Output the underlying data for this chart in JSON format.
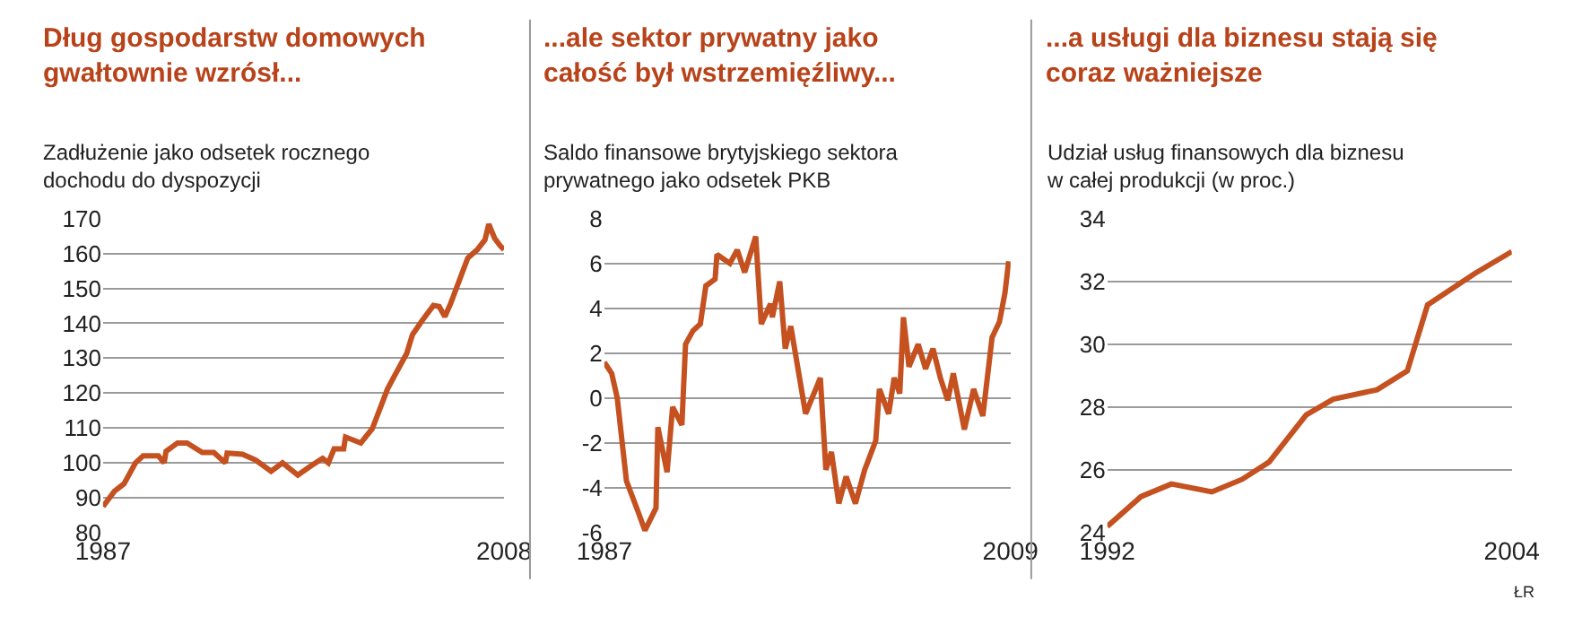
{
  "chart_data": [
    {
      "type": "line",
      "title": "Dług gospodarstw domowych gwałtownie wzrósł...",
      "subtitle": "Zadłużenie jako odsetek rocznego dochodu do dyspozycji",
      "x": [
        1987.0,
        1987.6,
        1988.1,
        1988.7,
        1989.1,
        1989.9,
        1990.2,
        1990.3,
        1990.9,
        1991.4,
        1992.2,
        1992.8,
        1993.4,
        1993.5,
        1994.3,
        1995.0,
        1995.8,
        1996.4,
        1997.2,
        1997.9,
        1998.5,
        1998.8,
        1999.1,
        1999.6,
        1999.7,
        2000.5,
        2001.1,
        2001.9,
        2002.3,
        2002.9,
        2003.2,
        2003.7,
        2004.3,
        2004.6,
        2004.9,
        2005.2,
        2006.1,
        2006.6,
        2007.0,
        2007.2,
        2007.5,
        2007.8,
        2008.0
      ],
      "series": [
        {
          "color": "#c4511f",
          "values": [
            87.5,
            91.9,
            94,
            100,
            102,
            102,
            100,
            103.3,
            105.7,
            105.7,
            103,
            103,
            100,
            102.8,
            102.5,
            100.8,
            97.6,
            100,
            96.5,
            99.2,
            101.3,
            100,
            104,
            104,
            107.4,
            105.7,
            109.8,
            121.2,
            125.3,
            131.3,
            136.7,
            140.7,
            145.1,
            144.8,
            141.9,
            145.6,
            158.7,
            161.1,
            163.9,
            168.4,
            164.4,
            162.2,
            161.1
          ]
        }
      ],
      "xlim": [
        1987,
        2008
      ],
      "xticks": [
        1987,
        2008
      ],
      "ylim": [
        80,
        170
      ],
      "yticks": [
        80,
        90,
        100,
        110,
        120,
        130,
        140,
        150,
        160,
        170
      ],
      "grid": "y"
    },
    {
      "type": "line",
      "title": "...ale sektor prywatny jako całość był wstrzemięźliwy...",
      "subtitle": "Saldo finansowe brytyjskiego sektora prywatnego jako odsetek PKB",
      "x": [
        1987.0,
        1987.4,
        1987.7,
        1988.2,
        1988.8,
        1989.2,
        1989.8,
        1989.9,
        1990.4,
        1990.7,
        1991.2,
        1991.4,
        1991.8,
        1992.2,
        1992.5,
        1993.0,
        1993.1,
        1993.8,
        1994.2,
        1994.6,
        1995.2,
        1995.5,
        1996.0,
        1996.1,
        1996.5,
        1996.8,
        1997.1,
        1997.9,
        1998.7,
        1999.0,
        1999.3,
        1999.7,
        2000.1,
        2000.6,
        2001.1,
        2001.7,
        2001.9,
        2002.4,
        2002.7,
        2003.0,
        2003.2,
        2003.5,
        2004.0,
        2004.4,
        2004.8,
        2005.2,
        2005.6,
        2005.9,
        2006.5,
        2007.0,
        2007.5,
        2008.0,
        2008.4,
        2008.7,
        2008.9
      ],
      "series": [
        {
          "color": "#c4511f",
          "values": [
            1.6,
            1.1,
            0,
            -3.7,
            -5,
            -5.9,
            -4.9,
            -1.3,
            -3.3,
            -0.4,
            -1.2,
            2.4,
            3,
            3.3,
            5,
            5.3,
            6.4,
            6,
            6.6,
            5.6,
            7.2,
            3.3,
            4.2,
            3.6,
            5.2,
            2.2,
            3.2,
            -0.7,
            0.9,
            -3.2,
            -2.4,
            -4.7,
            -3.5,
            -4.7,
            -3.2,
            -1.9,
            0.4,
            -0.7,
            0.9,
            0.2,
            3.6,
            1.4,
            2.4,
            1.3,
            2.2,
            0.9,
            -0.1,
            1.1,
            -1.4,
            0.4,
            -0.8,
            2.7,
            3.4,
            4.7,
            6.1
          ]
        }
      ],
      "xlim": [
        1987,
        2009
      ],
      "xticks": [
        1987,
        2009
      ],
      "ylim": [
        -6,
        8
      ],
      "yticks": [
        -6,
        -4,
        -2,
        0,
        2,
        4,
        6,
        8
      ],
      "grid": "y"
    },
    {
      "type": "line",
      "title": "...a usługi dla biznesu stają się coraz ważniejsze",
      "subtitle": "Udział usług finansowych dla biznesu w całej produkcji (w proc.)",
      "x": [
        1992.0,
        1993.0,
        1993.9,
        1995.1,
        1996.0,
        1996.8,
        1997.9,
        1998.7,
        2000.0,
        2000.9,
        2001.5,
        2002.9,
        2004.0
      ],
      "series": [
        {
          "color": "#c4511f",
          "values": [
            24.2,
            25.15,
            25.55,
            25.3,
            25.7,
            26.25,
            27.75,
            28.25,
            28.55,
            29.15,
            31.25,
            32.25,
            32.95
          ]
        }
      ],
      "xlim": [
        1992,
        2004
      ],
      "xticks": [
        1992,
        2004
      ],
      "ylim": [
        24,
        34
      ],
      "yticks": [
        24,
        26,
        28,
        30,
        32,
        34
      ],
      "grid": "y",
      "annotations": [
        "ŁR"
      ]
    }
  ]
}
